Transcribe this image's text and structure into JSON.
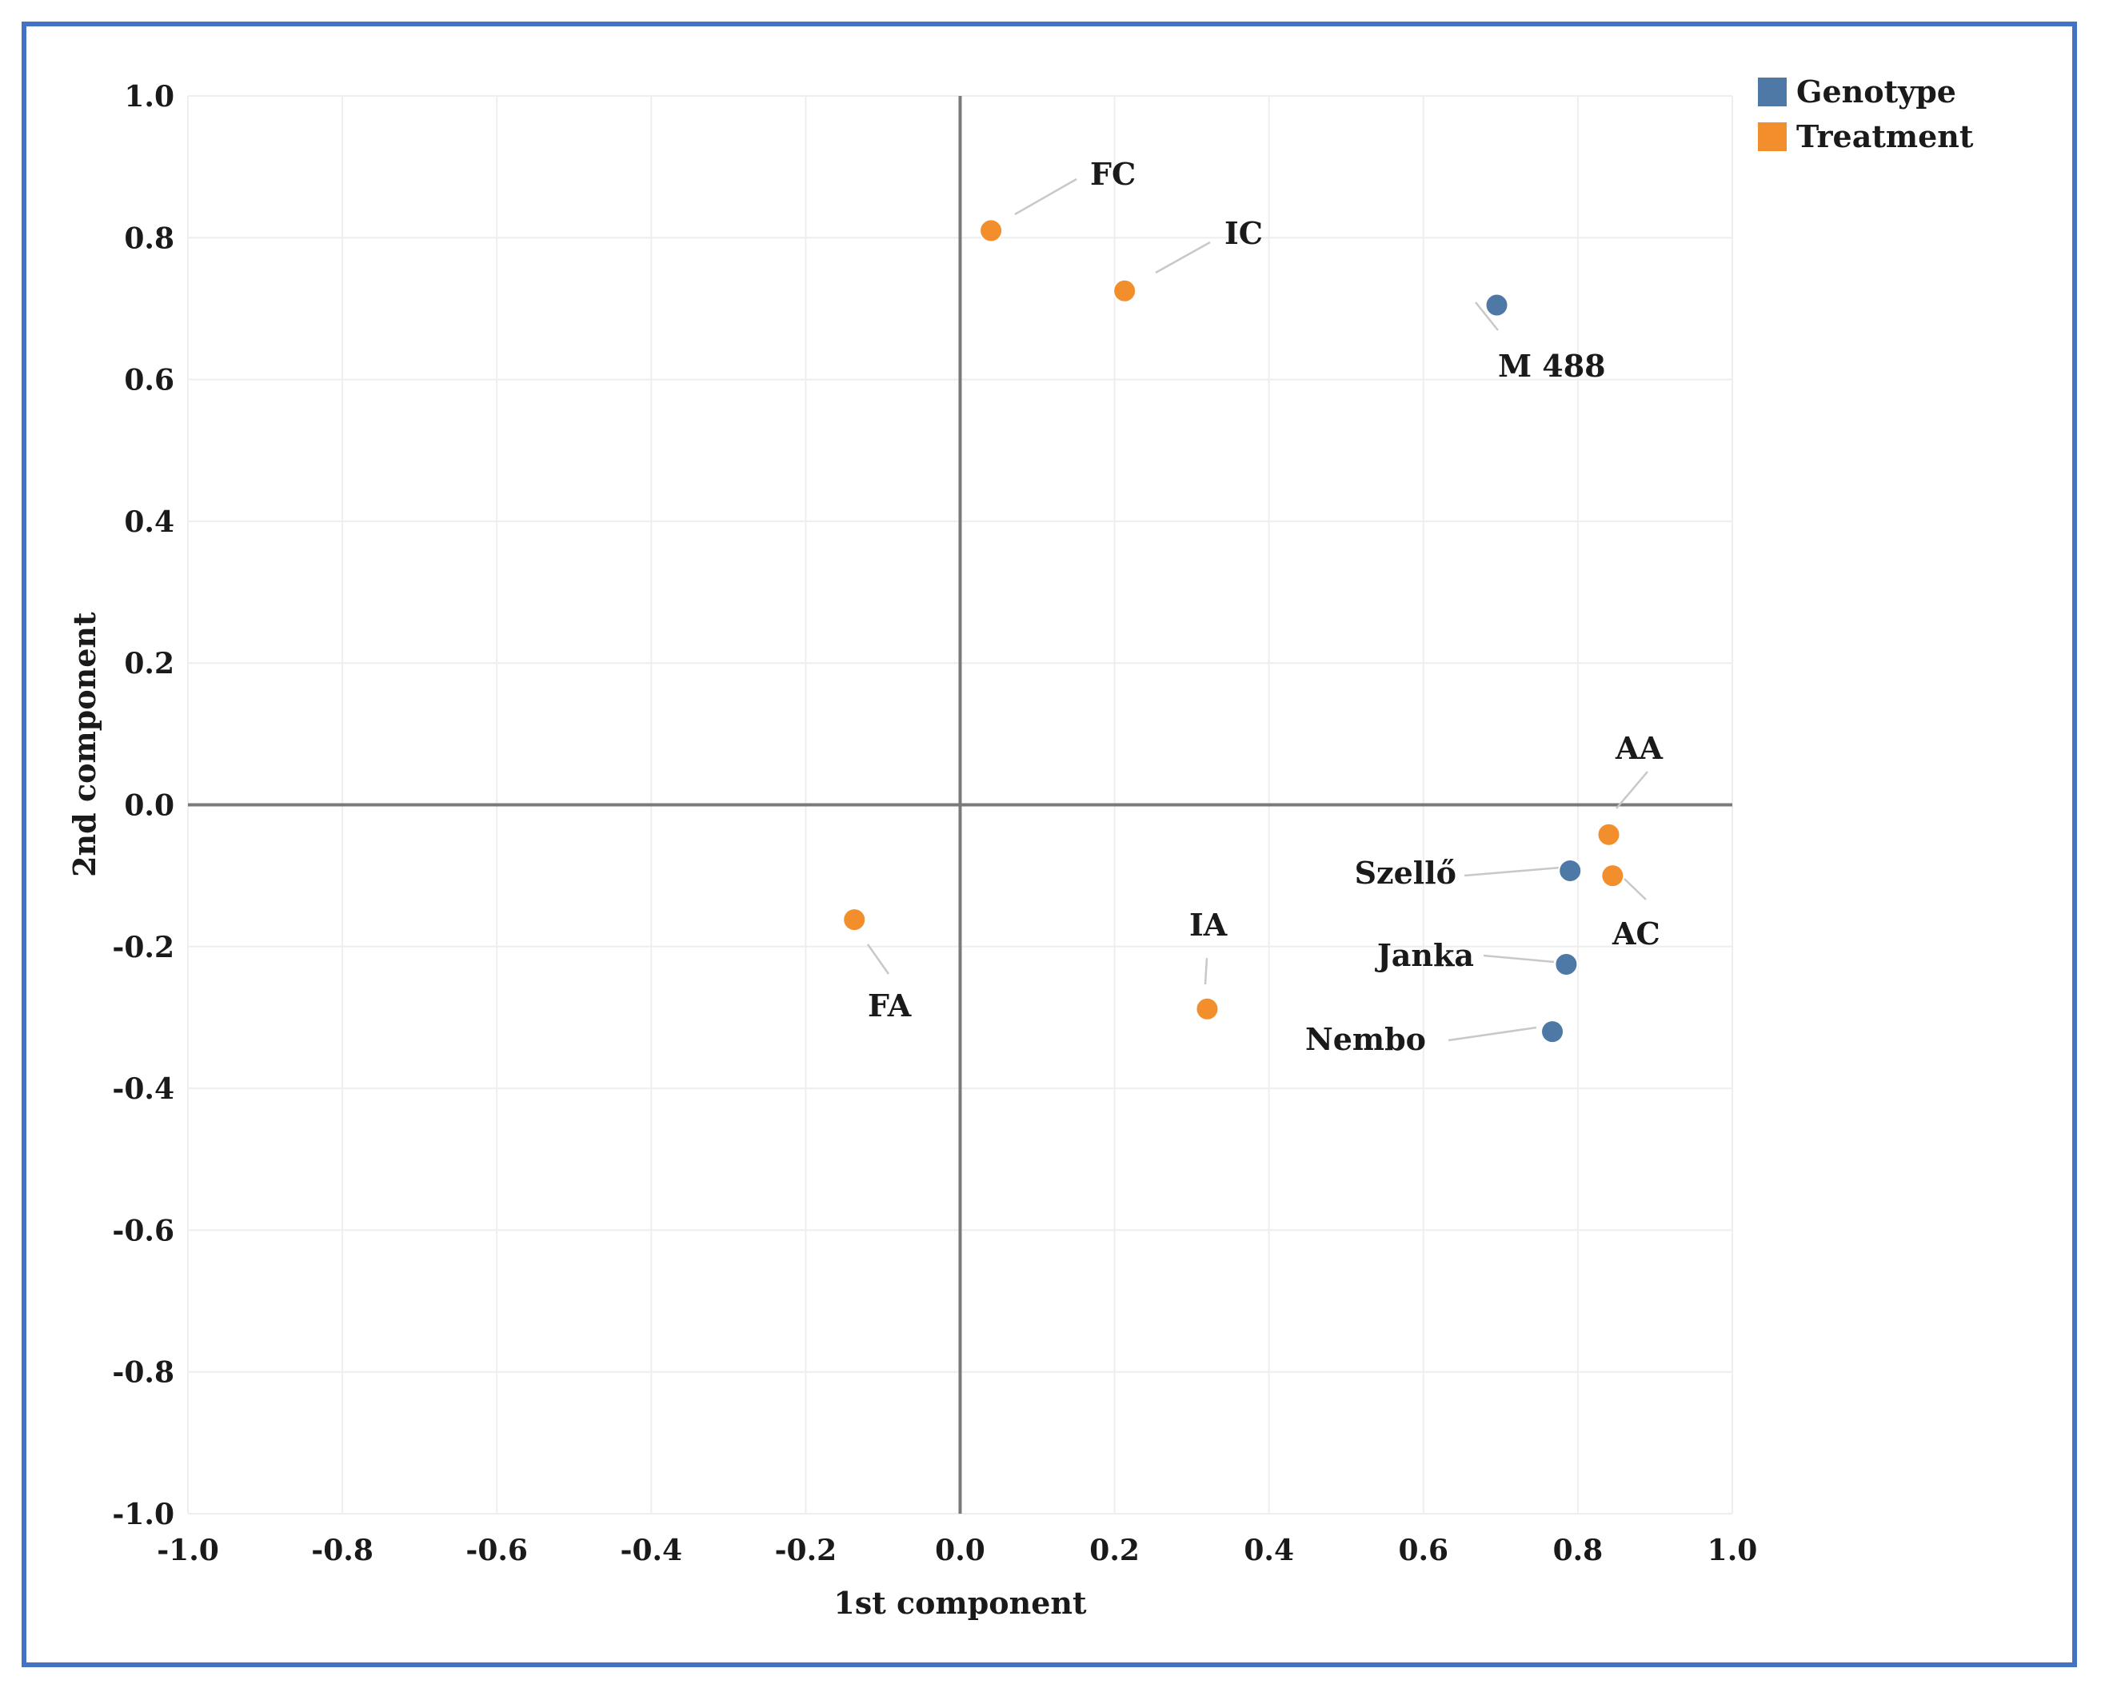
{
  "chart_data": {
    "type": "scatter",
    "title": "",
    "xlabel": "1st component",
    "ylabel": "2nd component",
    "xlim": [
      -1.0,
      1.0
    ],
    "ylim": [
      -1.0,
      1.0
    ],
    "xticks": [
      "-1.0",
      "-0.8",
      "-0.6",
      "-0.4",
      "-0.2",
      "0.0",
      "0.2",
      "0.4",
      "0.6",
      "0.8",
      "1.0"
    ],
    "yticks": [
      "1.0",
      "0.8",
      "0.6",
      "0.4",
      "0.2",
      "0.0",
      "-0.2",
      "-0.4",
      "-0.6",
      "-0.8",
      "-1.0"
    ],
    "grid": true,
    "legend_position": "top-right",
    "legend": [
      {
        "name": "Genotype",
        "color": "#4e79a7"
      },
      {
        "name": "Treatment",
        "color": "#f28e2b"
      }
    ],
    "series": [
      {
        "name": "Genotype",
        "color": "#4e79a7",
        "points": [
          {
            "label": "M 488",
            "x": 0.695,
            "y": 0.705
          },
          {
            "label": "Szellő",
            "x": 0.79,
            "y": -0.093
          },
          {
            "label": "Janka",
            "x": 0.785,
            "y": -0.225
          },
          {
            "label": "Nembo",
            "x": 0.767,
            "y": -0.32
          }
        ]
      },
      {
        "name": "Treatment",
        "color": "#f28e2b",
        "points": [
          {
            "label": "FC",
            "x": 0.04,
            "y": 0.81
          },
          {
            "label": "IC",
            "x": 0.213,
            "y": 0.725
          },
          {
            "label": "AA",
            "x": 0.84,
            "y": -0.042
          },
          {
            "label": "AC",
            "x": 0.845,
            "y": -0.1
          },
          {
            "label": "FA",
            "x": -0.137,
            "y": -0.162
          },
          {
            "label": "IA",
            "x": 0.32,
            "y": -0.288
          }
        ]
      }
    ]
  }
}
